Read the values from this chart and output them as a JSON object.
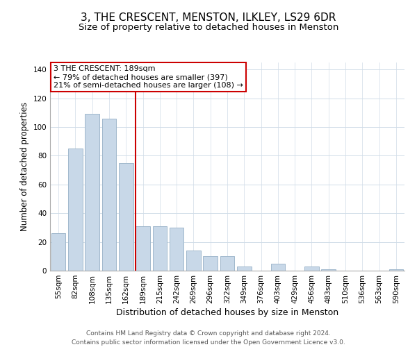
{
  "title": "3, THE CRESCENT, MENSTON, ILKLEY, LS29 6DR",
  "subtitle": "Size of property relative to detached houses in Menston",
  "xlabel": "Distribution of detached houses by size in Menston",
  "ylabel": "Number of detached properties",
  "bar_labels": [
    "55sqm",
    "82sqm",
    "108sqm",
    "135sqm",
    "162sqm",
    "189sqm",
    "215sqm",
    "242sqm",
    "269sqm",
    "296sqm",
    "322sqm",
    "349sqm",
    "376sqm",
    "403sqm",
    "429sqm",
    "456sqm",
    "483sqm",
    "510sqm",
    "536sqm",
    "563sqm",
    "590sqm"
  ],
  "bar_values": [
    26,
    85,
    109,
    106,
    75,
    31,
    31,
    30,
    14,
    10,
    10,
    3,
    0,
    5,
    0,
    3,
    1,
    0,
    0,
    0,
    1
  ],
  "bar_color": "#c8d8e8",
  "bar_edge_color": "#a0b8cc",
  "vline_index": 5,
  "vline_color": "#cc0000",
  "annotation_text": "3 THE CRESCENT: 189sqm\n← 79% of detached houses are smaller (397)\n21% of semi-detached houses are larger (108) →",
  "annotation_box_color": "#ffffff",
  "annotation_box_edge": "#cc0000",
  "ylim": [
    0,
    145
  ],
  "yticks": [
    0,
    20,
    40,
    60,
    80,
    100,
    120,
    140
  ],
  "footer_line1": "Contains HM Land Registry data © Crown copyright and database right 2024.",
  "footer_line2": "Contains public sector information licensed under the Open Government Licence v3.0.",
  "title_fontsize": 11,
  "subtitle_fontsize": 9.5,
  "xlabel_fontsize": 9,
  "ylabel_fontsize": 8.5,
  "tick_fontsize": 7.5,
  "annotation_fontsize": 8,
  "footer_fontsize": 6.5,
  "grid_color": "#d0dce8",
  "spine_color": "#aaaaaa"
}
